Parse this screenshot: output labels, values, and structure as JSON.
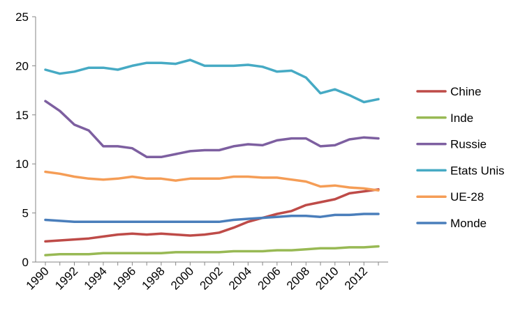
{
  "chart_data": {
    "type": "line",
    "title": "",
    "xlabel": "",
    "ylabel": "",
    "ylim": [
      0,
      25
    ],
    "yticks": [
      0,
      5,
      10,
      15,
      20,
      25
    ],
    "ytick_labels": [
      "0",
      "5",
      "10",
      "15",
      "20",
      "25"
    ],
    "xlim": [
      1990,
      2013
    ],
    "xticks": [
      1990,
      1992,
      1994,
      1996,
      1998,
      2000,
      2002,
      2004,
      2006,
      2008,
      2010,
      2012
    ],
    "xtick_labels": [
      "1990",
      "1992",
      "1994",
      "1996",
      "1998",
      "2000",
      "2002",
      "2004",
      "2006",
      "2008",
      "2010",
      "2012"
    ],
    "x": [
      1990,
      1991,
      1992,
      1993,
      1994,
      1995,
      1996,
      1997,
      1998,
      1999,
      2000,
      2001,
      2002,
      2003,
      2004,
      2005,
      2006,
      2007,
      2008,
      2009,
      2010,
      2011,
      2012,
      2013
    ],
    "grid": false,
    "legend_position": "right",
    "series": [
      {
        "name": "Chine",
        "color": "#be4b48",
        "values": [
          2.1,
          2.2,
          2.3,
          2.4,
          2.6,
          2.8,
          2.9,
          2.8,
          2.9,
          2.8,
          2.7,
          2.8,
          3.0,
          3.5,
          4.1,
          4.5,
          4.9,
          5.2,
          5.8,
          6.1,
          6.4,
          7.0,
          7.2,
          7.4
        ]
      },
      {
        "name": "Inde",
        "color": "#98b954",
        "values": [
          0.7,
          0.8,
          0.8,
          0.8,
          0.9,
          0.9,
          0.9,
          0.9,
          0.9,
          1.0,
          1.0,
          1.0,
          1.0,
          1.1,
          1.1,
          1.1,
          1.2,
          1.2,
          1.3,
          1.4,
          1.4,
          1.5,
          1.5,
          1.6
        ]
      },
      {
        "name": "Russie",
        "color": "#7d5fa0",
        "values": [
          16.4,
          15.4,
          14.0,
          13.4,
          11.8,
          11.8,
          11.6,
          10.7,
          10.7,
          11.0,
          11.3,
          11.4,
          11.4,
          11.8,
          12.0,
          11.9,
          12.4,
          12.6,
          12.6,
          11.8,
          11.9,
          12.5,
          12.7,
          12.6
        ]
      },
      {
        "name": "Etats Unis",
        "color": "#46aac4",
        "values": [
          19.6,
          19.2,
          19.4,
          19.8,
          19.8,
          19.6,
          20.0,
          20.3,
          20.3,
          20.2,
          20.6,
          20.0,
          20.0,
          20.0,
          20.1,
          19.9,
          19.4,
          19.5,
          18.8,
          17.2,
          17.6,
          17.0,
          16.3,
          16.6
        ]
      },
      {
        "name": "UE-28",
        "color": "#f59d56",
        "values": [
          9.2,
          9.0,
          8.7,
          8.5,
          8.4,
          8.5,
          8.7,
          8.5,
          8.5,
          8.3,
          8.5,
          8.5,
          8.5,
          8.7,
          8.7,
          8.6,
          8.6,
          8.4,
          8.2,
          7.7,
          7.8,
          7.6,
          7.5,
          7.3
        ]
      },
      {
        "name": "Monde",
        "color": "#4a7ebb",
        "values": [
          4.3,
          4.2,
          4.1,
          4.1,
          4.1,
          4.1,
          4.1,
          4.1,
          4.1,
          4.1,
          4.1,
          4.1,
          4.1,
          4.3,
          4.4,
          4.5,
          4.6,
          4.7,
          4.7,
          4.6,
          4.8,
          4.8,
          4.9,
          4.9
        ]
      }
    ]
  }
}
